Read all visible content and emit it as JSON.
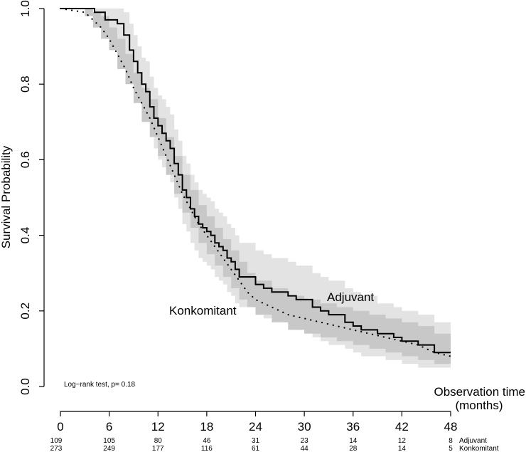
{
  "chart_data": {
    "type": "line",
    "title": "",
    "ylabel": "Survival Probability",
    "xlabel": "Observation time",
    "xlabel_unit": "(months)",
    "xlim": [
      0,
      48
    ],
    "ylim": [
      0,
      1
    ],
    "xticks": [
      "0",
      "6",
      "12",
      "18",
      "24",
      "30",
      "36",
      "42",
      "48"
    ],
    "yticks": [
      "0.0",
      "0.2",
      "0.4",
      "0.6",
      "0.8",
      "1.0"
    ],
    "grid": false,
    "legend": "none",
    "annotation": "Log−rank test, p= 0.18",
    "series": [
      {
        "name": "Adjuvant",
        "line_style": "solid",
        "band_color": "#e3e3e3",
        "x": [
          0,
          4.2,
          5.5,
          7.0,
          7.8,
          8.5,
          9.0,
          9.5,
          10.0,
          10.5,
          11.0,
          11.5,
          12.0,
          12.5,
          13.0,
          13.5,
          14.0,
          14.5,
          15.0,
          15.5,
          16.0,
          16.5,
          17.0,
          17.5,
          18.0,
          18.5,
          19.0,
          19.5,
          20.0,
          20.5,
          21.0,
          21.5,
          22.0,
          23.0,
          24.0,
          25.0,
          26.0,
          28.0,
          29.0,
          31.0,
          32.0,
          33.0,
          35.0,
          36.0,
          37.0,
          39.0,
          40.0,
          41.0,
          42.0,
          44.0,
          46.0,
          48.0
        ],
        "y": [
          1.0,
          0.99,
          0.97,
          0.96,
          0.93,
          0.89,
          0.86,
          0.83,
          0.8,
          0.78,
          0.74,
          0.71,
          0.69,
          0.67,
          0.65,
          0.63,
          0.59,
          0.56,
          0.52,
          0.5,
          0.47,
          0.45,
          0.43,
          0.42,
          0.41,
          0.4,
          0.38,
          0.37,
          0.36,
          0.34,
          0.33,
          0.31,
          0.29,
          0.29,
          0.27,
          0.26,
          0.25,
          0.24,
          0.23,
          0.21,
          0.2,
          0.19,
          0.17,
          0.16,
          0.15,
          0.14,
          0.14,
          0.13,
          0.12,
          0.11,
          0.09,
          0.09
        ],
        "lower": [
          1.0,
          0.97,
          0.94,
          0.92,
          0.87,
          0.83,
          0.79,
          0.76,
          0.73,
          0.7,
          0.66,
          0.63,
          0.6,
          0.58,
          0.56,
          0.54,
          0.5,
          0.47,
          0.43,
          0.41,
          0.38,
          0.36,
          0.34,
          0.33,
          0.32,
          0.31,
          0.29,
          0.28,
          0.27,
          0.25,
          0.24,
          0.22,
          0.21,
          0.21,
          0.19,
          0.18,
          0.17,
          0.16,
          0.15,
          0.13,
          0.12,
          0.11,
          0.1,
          0.09,
          0.08,
          0.08,
          0.07,
          0.07,
          0.06,
          0.05,
          0.05,
          0.05
        ],
        "upper": [
          1.0,
          1.0,
          1.0,
          1.0,
          0.99,
          0.96,
          0.93,
          0.9,
          0.87,
          0.86,
          0.82,
          0.79,
          0.77,
          0.76,
          0.74,
          0.72,
          0.68,
          0.65,
          0.61,
          0.59,
          0.56,
          0.54,
          0.52,
          0.51,
          0.5,
          0.49,
          0.47,
          0.46,
          0.45,
          0.43,
          0.42,
          0.4,
          0.38,
          0.38,
          0.36,
          0.35,
          0.34,
          0.33,
          0.32,
          0.3,
          0.29,
          0.28,
          0.26,
          0.25,
          0.24,
          0.22,
          0.22,
          0.21,
          0.2,
          0.19,
          0.17,
          0.17
        ]
      },
      {
        "name": "Konkomitant",
        "line_style": "dotted",
        "band_color": "#c8c8c8",
        "x": [
          0,
          3.0,
          4.0,
          5.0,
          6.0,
          7.0,
          8.0,
          9.0,
          10.0,
          11.0,
          12.0,
          13.0,
          14.0,
          15.0,
          16.0,
          17.0,
          18.0,
          19.0,
          20.0,
          21.0,
          22.0,
          23.0,
          24.0,
          26.0,
          28.0,
          30.0,
          32.0,
          34.0,
          36.0,
          38.0,
          40.0,
          42.0,
          44.0,
          46.0,
          48.0
        ],
        "y": [
          1.0,
          0.99,
          0.97,
          0.95,
          0.92,
          0.88,
          0.84,
          0.79,
          0.75,
          0.71,
          0.66,
          0.61,
          0.56,
          0.51,
          0.47,
          0.43,
          0.4,
          0.37,
          0.34,
          0.31,
          0.28,
          0.25,
          0.23,
          0.21,
          0.19,
          0.18,
          0.17,
          0.16,
          0.15,
          0.14,
          0.13,
          0.12,
          0.11,
          0.09,
          0.08
        ],
        "lower": [
          1.0,
          0.98,
          0.95,
          0.92,
          0.89,
          0.84,
          0.8,
          0.75,
          0.7,
          0.66,
          0.61,
          0.56,
          0.51,
          0.46,
          0.42,
          0.38,
          0.35,
          0.32,
          0.29,
          0.26,
          0.23,
          0.21,
          0.19,
          0.17,
          0.15,
          0.14,
          0.13,
          0.12,
          0.11,
          0.1,
          0.09,
          0.08,
          0.07,
          0.06,
          0.05
        ],
        "upper": [
          1.0,
          1.0,
          0.99,
          0.98,
          0.95,
          0.92,
          0.88,
          0.83,
          0.79,
          0.76,
          0.71,
          0.66,
          0.61,
          0.56,
          0.52,
          0.48,
          0.45,
          0.42,
          0.39,
          0.36,
          0.33,
          0.3,
          0.28,
          0.26,
          0.24,
          0.23,
          0.22,
          0.21,
          0.2,
          0.19,
          0.18,
          0.17,
          0.16,
          0.14,
          0.13
        ]
      }
    ],
    "risk_table": {
      "times": [
        0,
        6,
        12,
        18,
        24,
        30,
        36,
        42,
        48
      ],
      "rows": [
        {
          "name": "Adjuvant",
          "counts": [
            "109",
            "105",
            "80",
            "46",
            "31",
            "23",
            "14",
            "12",
            "8"
          ]
        },
        {
          "name": "Konkomitant",
          "counts": [
            "273",
            "249",
            "177",
            "116",
            "61",
            "44",
            "28",
            "14",
            "5"
          ]
        }
      ]
    }
  }
}
